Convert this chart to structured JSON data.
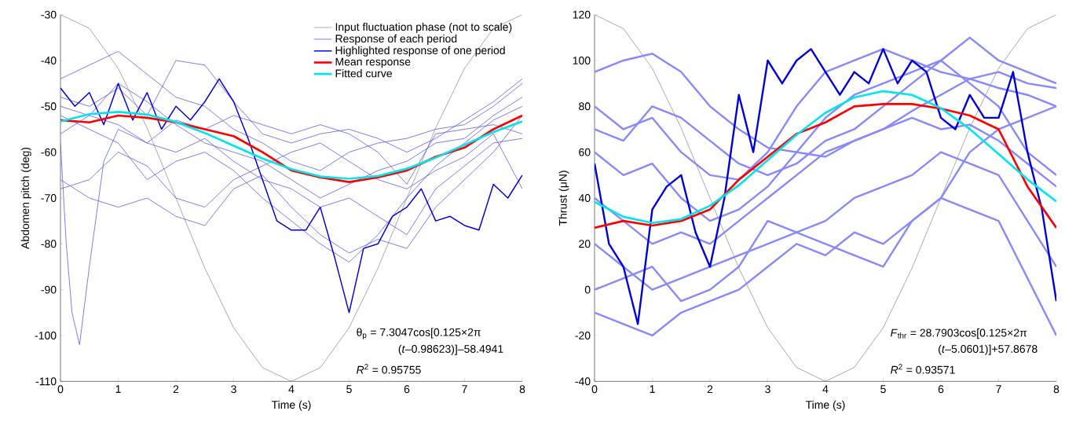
{
  "chart_data": [
    {
      "type": "line",
      "xlabel": "Time (s)",
      "ylabel": "Abdomen pitch (deg)",
      "xlim": [
        0,
        8
      ],
      "ylim": [
        -110,
        -30
      ],
      "xticks": [
        0,
        1,
        2,
        3,
        4,
        5,
        6,
        7,
        8
      ],
      "yticks": [
        -110,
        -100,
        -90,
        -80,
        -70,
        -60,
        -50,
        -40,
        -30
      ],
      "legend": "top right",
      "x": [
        0,
        0.5,
        1,
        1.5,
        2,
        2.5,
        3,
        3.5,
        4,
        4.5,
        5,
        5.5,
        6,
        6.5,
        7,
        7.5,
        8
      ],
      "series": [
        {
          "name": "Input fluctuation phase (not to scale)",
          "color": "#808080",
          "values": [
            -30,
            -33.0,
            -41.7,
            -54.7,
            -70,
            -85.3,
            -98.3,
            -107.0,
            -110,
            -107.0,
            -98.3,
            -85.3,
            -70,
            -54.7,
            -41.7,
            -33.0,
            -30
          ]
        },
        {
          "name": "Response of each period",
          "color": "#5c5cf5",
          "values": [
            -44,
            -41,
            -38,
            -43,
            -48,
            -50,
            -55,
            -58,
            -62,
            -64,
            -60,
            -58,
            -57,
            -55,
            -54,
            -50,
            -45
          ]
        },
        {
          "color": "#5c5cf5",
          "values": [
            -48,
            -50,
            -46,
            -52,
            -40,
            -41,
            -49,
            -56,
            -58,
            -56,
            -55,
            -57,
            -60,
            -57,
            -53,
            -49,
            -44
          ]
        },
        {
          "color": "#5c5cf5",
          "values": [
            -66,
            -70,
            -72,
            -70,
            -74,
            -76,
            -68,
            -65,
            -72,
            -78,
            -82,
            -79,
            -81,
            -72,
            -66,
            -60,
            -52
          ]
        },
        {
          "color": "#5c5cf5",
          "values": [
            -52,
            -55,
            -58,
            -66,
            -62,
            -60,
            -64,
            -70,
            -75,
            -80,
            -84,
            -78,
            -70,
            -63,
            -58,
            -53,
            -50
          ]
        },
        {
          "color": "#5c5cf5",
          "values": [
            -50,
            -52,
            -45,
            -49,
            -54,
            -58,
            -60,
            -62,
            -66,
            -70,
            -67,
            -64,
            -62,
            -58,
            -57,
            -52,
            -48
          ]
        },
        {
          "color": "#5c5cf5",
          "values": [
            -56,
            -52,
            -54,
            -58,
            -53,
            -55,
            -52,
            -54,
            -56,
            -54,
            -56,
            -60,
            -67,
            -56,
            -55,
            -54,
            -56
          ]
        },
        {
          "color": "#5c5cf5",
          "x": [
            0,
            0.1,
            0.2,
            0.33,
            0.5,
            0.75,
            1,
            1.5,
            2,
            2.5,
            3,
            3.5,
            4,
            4.5,
            5,
            5.5,
            6,
            6.5,
            7,
            7.5,
            8
          ],
          "values": [
            -58,
            -80,
            -95,
            -102,
            -85,
            -62,
            -55,
            -58,
            -60,
            -57,
            -62,
            -66,
            -68,
            -72,
            -70,
            -74,
            -78,
            -68,
            -63,
            -58,
            -57
          ]
        },
        {
          "color": "#5c5cf5",
          "values": [
            -68,
            -66,
            -60,
            -63,
            -70,
            -72,
            -66,
            -63,
            -60,
            -58,
            -62,
            -66,
            -68,
            -64,
            -61,
            -56,
            -68
          ]
        },
        {
          "name": "Highlighted response of one period",
          "color": "#0000e6",
          "x": [
            0,
            0.25,
            0.5,
            0.75,
            1,
            1.25,
            1.5,
            1.75,
            2,
            2.25,
            2.5,
            2.75,
            3,
            3.25,
            3.5,
            3.75,
            4,
            4.25,
            4.5,
            4.75,
            5,
            5.25,
            5.5,
            5.75,
            6,
            6.25,
            6.5,
            6.75,
            7,
            7.25,
            7.5,
            7.75,
            8
          ],
          "values": [
            -46,
            -50,
            -47,
            -54,
            -45,
            -53,
            -47,
            -55,
            -50,
            -53,
            -49,
            -44,
            -49,
            -57,
            -66,
            -75,
            -77,
            -77,
            -72,
            -83,
            -95,
            -81,
            -80,
            -74,
            -72,
            -68,
            -75,
            -74,
            -76,
            -77,
            -67,
            -70,
            -65
          ]
        },
        {
          "name": "Mean response",
          "color": "#ff0000",
          "values": [
            -53,
            -53.5,
            -52,
            -52.5,
            -53.5,
            -55,
            -56.5,
            -60,
            -64,
            -65.5,
            -66.5,
            -65.5,
            -64,
            -61,
            -59,
            -55,
            -52
          ]
        },
        {
          "name": "Fitted curve",
          "color": "#00e5ee",
          "values": [
            -53.3,
            -51.7,
            -51.2,
            -51.8,
            -53.4,
            -55.8,
            -58.6,
            -61.4,
            -63.7,
            -65.3,
            -65.8,
            -65.2,
            -63.6,
            -61.2,
            -58.4,
            -55.6,
            -53.3
          ]
        }
      ],
      "annotations": [
        "θ$_{p}$ = 7.3047cos[0.125×2π",
        "(*t*–0.98623)]–58.4941",
        "*R*$^{2}$ = 0.95755"
      ]
    },
    {
      "type": "line",
      "xlabel": "Time (s)",
      "ylabel": "Thrust (μN)",
      "xlim": [
        0,
        8
      ],
      "ylim": [
        -40,
        120
      ],
      "xticks": [
        0,
        1,
        2,
        3,
        4,
        5,
        6,
        7,
        8
      ],
      "yticks": [
        -40,
        -20,
        0,
        20,
        40,
        60,
        80,
        100,
        120
      ],
      "x": [
        0,
        0.5,
        1,
        1.5,
        2,
        2.5,
        3,
        3.5,
        4,
        4.5,
        5,
        5.5,
        6,
        6.5,
        7,
        7.5,
        8
      ],
      "series": [
        {
          "color": "#808080",
          "values": [
            120,
            113.9,
            96.6,
            70.6,
            40,
            9.4,
            -16.6,
            -33.9,
            -40,
            -33.9,
            -16.6,
            9.4,
            40,
            70.6,
            96.6,
            113.9,
            120
          ]
        },
        {
          "color": "#8888ff",
          "values": [
            95,
            100,
            103,
            95,
            80,
            70,
            62,
            60,
            58,
            65,
            70,
            78,
            85,
            92,
            95,
            90,
            88
          ]
        },
        {
          "color": "#8888ff",
          "values": [
            80,
            70,
            75,
            60,
            50,
            48,
            60,
            80,
            95,
            100,
            105,
            100,
            95,
            92,
            88,
            85,
            80
          ]
        },
        {
          "color": "#8888ff",
          "values": [
            60,
            50,
            55,
            40,
            30,
            35,
            45,
            60,
            75,
            85,
            90,
            95,
            100,
            90,
            80,
            60,
            50
          ]
        },
        {
          "color": "#8888ff",
          "values": [
            40,
            30,
            20,
            25,
            20,
            30,
            40,
            50,
            60,
            65,
            70,
            75,
            70,
            72,
            65,
            55,
            45
          ]
        },
        {
          "color": "#8888ff",
          "values": [
            20,
            10,
            0,
            5,
            10,
            15,
            20,
            25,
            30,
            40,
            45,
            50,
            60,
            55,
            50,
            30,
            10
          ]
        },
        {
          "color": "#8888ff",
          "values": [
            -10,
            -15,
            -20,
            -10,
            -5,
            0,
            10,
            20,
            15,
            25,
            20,
            30,
            40,
            35,
            30,
            5,
            -20
          ]
        },
        {
          "color": "#8888ff",
          "values": [
            0,
            5,
            10,
            -5,
            0,
            10,
            30,
            25,
            20,
            15,
            10,
            30,
            40,
            60,
            70,
            75,
            80
          ]
        },
        {
          "color": "#8888ff",
          "values": [
            70,
            65,
            80,
            75,
            65,
            55,
            50,
            55,
            65,
            70,
            80,
            90,
            100,
            110,
            100,
            95,
            90
          ]
        },
        {
          "color": "#0000dd",
          "x": [
            0,
            0.25,
            0.5,
            0.75,
            1,
            1.25,
            1.5,
            1.75,
            2,
            2.25,
            2.5,
            2.75,
            3,
            3.25,
            3.5,
            3.75,
            4,
            4.25,
            4.5,
            4.75,
            5,
            5.25,
            5.5,
            5.75,
            6,
            6.25,
            6.5,
            6.75,
            7,
            7.25,
            7.5,
            7.75,
            8
          ],
          "values": [
            55,
            20,
            10,
            -15,
            35,
            45,
            50,
            25,
            10,
            40,
            85,
            60,
            100,
            90,
            100,
            105,
            95,
            85,
            95,
            90,
            105,
            90,
            100,
            95,
            75,
            70,
            85,
            75,
            75,
            95,
            60,
            35,
            -5
          ]
        },
        {
          "color": "#ff0000",
          "values": [
            27,
            30,
            28,
            30,
            35,
            48,
            58,
            68,
            73,
            80,
            81,
            81,
            79,
            76,
            70,
            45,
            27
          ]
        },
        {
          "color": "#00e5ee",
          "values": [
            38.3,
            31.8,
            29.1,
            30.8,
            36.6,
            45.6,
            56.5,
            67.6,
            77.2,
            83.9,
            86.6,
            85.0,
            79.2,
            70.1,
            59.2,
            48.1,
            38.5
          ]
        }
      ],
      "annotations": [
        "*F*$_{thr}$ = 28.7903cos[0.125×2π",
        "(*t*–5.0601)]+57.8678",
        "*R*$^{2}$ = 0.93571"
      ]
    }
  ]
}
